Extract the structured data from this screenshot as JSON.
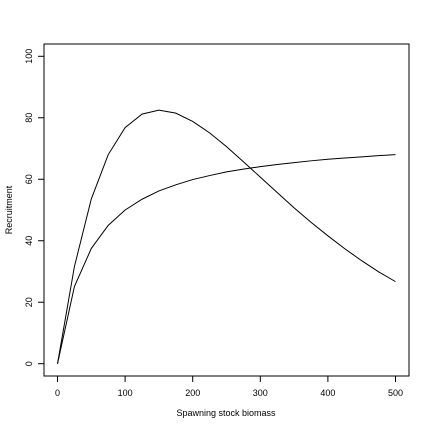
{
  "chart_data": {
    "type": "line",
    "x_label": "Spawning stock biomass",
    "y_label": "Recruitment",
    "x": [
      0,
      25,
      50,
      75,
      100,
      125,
      150,
      175,
      200,
      225,
      250,
      275,
      300,
      325,
      350,
      375,
      400,
      425,
      450,
      475,
      500
    ],
    "series": [
      {
        "color": "#000000",
        "values": [
          0,
          31.6,
          53.6,
          68.0,
          76.8,
          81.2,
          82.5,
          81.5,
          78.8,
          75.1,
          70.6,
          65.7,
          60.7,
          55.7,
          50.7,
          46.0,
          41.6,
          37.4,
          33.5,
          29.9,
          26.7
        ]
      },
      {
        "color": "#000000",
        "values": [
          0,
          25.1,
          37.5,
          45.0,
          50.0,
          53.5,
          56.2,
          58.2,
          59.9,
          61.2,
          62.4,
          63.3,
          64.1,
          64.8,
          65.4,
          66.0,
          66.5,
          66.9,
          67.3,
          67.7,
          68.0
        ]
      }
    ],
    "xlim": [
      -20,
      520
    ],
    "ylim": [
      -4,
      104
    ],
    "xticks": [
      0,
      100,
      200,
      300,
      400,
      500
    ],
    "yticks": [
      0,
      20,
      40,
      60,
      80,
      100
    ]
  }
}
